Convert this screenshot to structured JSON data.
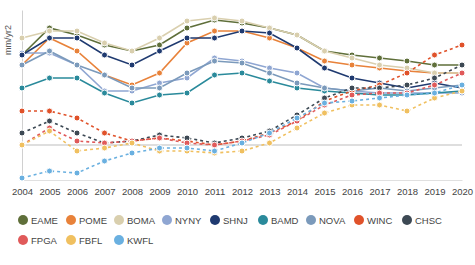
{
  "chart_data": {
    "type": "line",
    "y_label": "mm/yr2",
    "x": [
      2004,
      2005,
      2006,
      2007,
      2008,
      2009,
      2010,
      2011,
      2012,
      2013,
      2014,
      2015,
      2016,
      2017,
      2018,
      2019,
      2020
    ],
    "xlim": [
      2004,
      2020
    ],
    "xticks": [
      2004,
      2005,
      2006,
      2007,
      2008,
      2009,
      2010,
      2011,
      2012,
      2013,
      2014,
      2015,
      2016,
      2017,
      2018,
      2019,
      2020
    ],
    "ylim": [
      -3.5,
      13.5
    ],
    "yticks": [
      0
    ],
    "grid": true,
    "tick_labels": "x",
    "legend": "bottom",
    "marker": "circle",
    "series": [
      {
        "name": "EAME",
        "color": "#5f6f3a",
        "line_style": "solid",
        "values": [
          9.0,
          11.7,
          11.0,
          10.0,
          9.4,
          10.0,
          11.7,
          12.5,
          12.2,
          11.7,
          11.0,
          9.4,
          9.0,
          8.7,
          8.4,
          8.0,
          8.0
        ]
      },
      {
        "name": "POME",
        "color": "#e8823a",
        "line_style": "solid",
        "values": [
          8.0,
          10.7,
          9.4,
          7.0,
          6.0,
          7.2,
          10.2,
          11.4,
          11.4,
          10.7,
          9.7,
          8.4,
          8.0,
          7.7,
          7.4,
          7.2,
          7.2
        ]
      },
      {
        "name": "BOMA",
        "color": "#d9cfae",
        "line_style": "solid",
        "values": [
          10.7,
          11.4,
          11.4,
          10.2,
          9.4,
          10.7,
          12.4,
          12.7,
          12.4,
          11.7,
          11.0,
          9.4,
          8.7,
          8.0,
          7.7,
          7.2,
          7.2
        ]
      },
      {
        "name": "NYNY",
        "color": "#8fa6d2",
        "line_style": "solid",
        "values": [
          9.2,
          9.2,
          8.0,
          5.4,
          5.4,
          6.2,
          6.7,
          8.7,
          8.4,
          7.7,
          7.2,
          5.7,
          5.4,
          5.2,
          5.2,
          5.2,
          5.2
        ]
      },
      {
        "name": "SHNJ",
        "color": "#1f3a70",
        "line_style": "solid",
        "values": [
          9.0,
          10.7,
          10.7,
          9.0,
          8.0,
          9.4,
          10.7,
          10.7,
          11.4,
          11.2,
          9.7,
          7.7,
          6.7,
          6.2,
          5.7,
          6.2,
          5.7
        ]
      },
      {
        "name": "BAMD",
        "color": "#2a8a9b",
        "line_style": "solid",
        "values": [
          5.7,
          6.7,
          6.7,
          5.2,
          4.2,
          5.0,
          5.2,
          7.0,
          7.2,
          6.4,
          5.7,
          5.4,
          5.2,
          5.0,
          5.0,
          5.2,
          5.4
        ]
      },
      {
        "name": "NOVA",
        "color": "#7b9abb",
        "line_style": "solid",
        "values": [
          8.0,
          9.4,
          8.0,
          7.0,
          5.7,
          5.7,
          7.2,
          8.4,
          8.2,
          7.2,
          6.2,
          5.7,
          5.4,
          5.7,
          5.4,
          5.7,
          6.0
        ]
      },
      {
        "name": "WINC",
        "color": "#e0522a",
        "line_style": "dashed",
        "values": [
          3.4,
          3.4,
          2.7,
          1.2,
          0.4,
          0.7,
          0.4,
          0.0,
          0.4,
          1.2,
          2.4,
          4.4,
          5.4,
          6.0,
          7.2,
          9.0,
          10.0
        ]
      },
      {
        "name": "CHSC",
        "color": "#3d4954",
        "line_style": "dashed",
        "values": [
          1.2,
          2.4,
          1.2,
          0.2,
          0.4,
          1.0,
          0.7,
          0.2,
          0.7,
          1.4,
          3.0,
          4.7,
          5.7,
          5.7,
          6.0,
          6.7,
          8.0
        ]
      },
      {
        "name": "FPGA",
        "color": "#e05a5a",
        "line_style": "dashed",
        "values": [
          0.0,
          1.7,
          0.4,
          0.2,
          0.4,
          0.7,
          0.2,
          0.0,
          0.4,
          1.0,
          2.4,
          4.0,
          5.0,
          5.2,
          5.2,
          6.0,
          7.2
        ]
      },
      {
        "name": "FBFL",
        "color": "#f0c060",
        "line_style": "dashed",
        "values": [
          0.0,
          1.4,
          -0.6,
          -0.3,
          0.2,
          -0.6,
          -0.6,
          -0.8,
          -0.6,
          0.2,
          1.7,
          3.2,
          4.0,
          4.0,
          3.4,
          4.7,
          5.4
        ]
      },
      {
        "name": "KWFL",
        "color": "#6ab0e0",
        "line_style": "dashed",
        "values": [
          -3.3,
          -2.6,
          -2.8,
          -1.6,
          -0.8,
          -0.3,
          -0.3,
          -0.6,
          0.2,
          1.2,
          2.7,
          4.2,
          4.4,
          4.7,
          5.0,
          5.2,
          6.0
        ]
      }
    ]
  }
}
